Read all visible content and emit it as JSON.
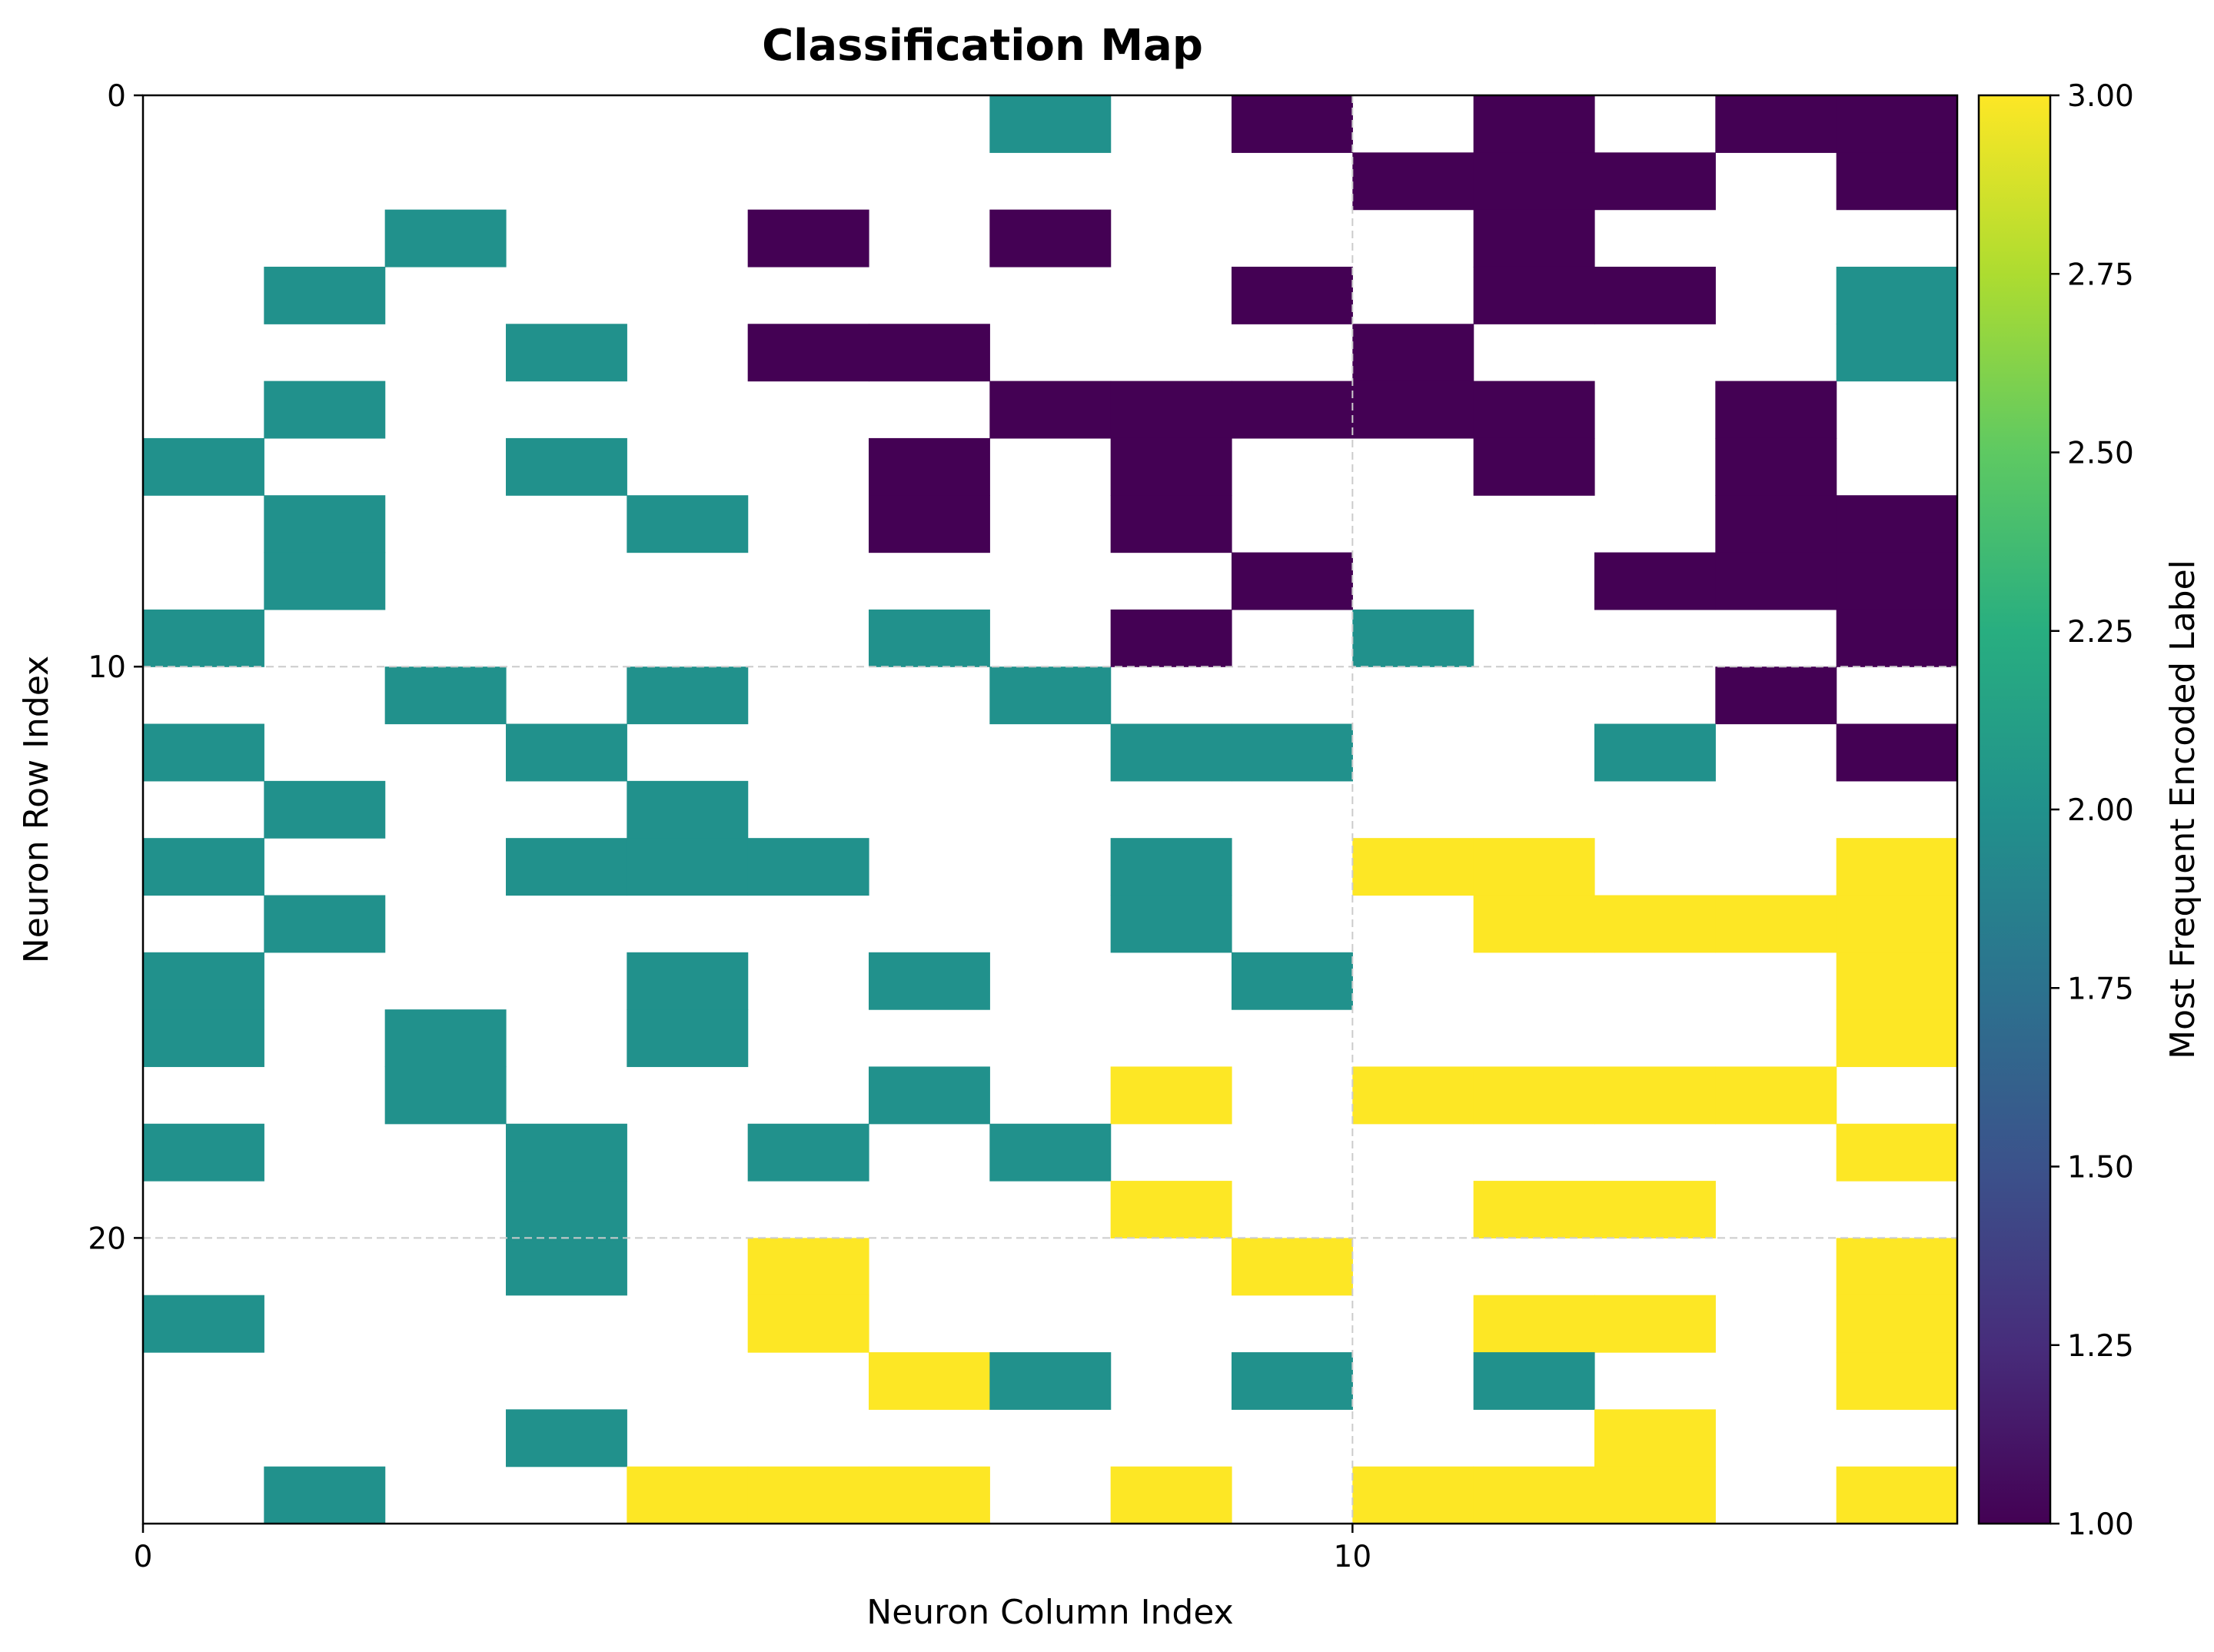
{
  "chart_data": {
    "type": "heatmap",
    "title": "Classification Map",
    "xlabel": "Neuron Column Index",
    "ylabel": "Neuron Row Index",
    "xlim": [
      0,
      15
    ],
    "ylim": [
      25,
      0
    ],
    "x_ticks": [
      0,
      10
    ],
    "y_ticks": [
      0,
      10,
      20
    ],
    "grid": true,
    "colormap": "viridis",
    "colorbar": {
      "label": "Most Frequent Encoded Label",
      "range": [
        1.0,
        3.0
      ],
      "ticks": [
        "1.00",
        "1.25",
        "1.50",
        "1.75",
        "2.00",
        "2.25",
        "2.50",
        "2.75",
        "3.00"
      ]
    },
    "colors": {
      "1": "#440154",
      "2": "#21918c",
      "3": "#fde725"
    },
    "note_empty": "0 = empty cell (no label)",
    "grid_values": [
      [
        0,
        0,
        0,
        0,
        0,
        0,
        0,
        2,
        0,
        1,
        0,
        1,
        0,
        1,
        1
      ],
      [
        0,
        0,
        0,
        0,
        0,
        0,
        0,
        0,
        0,
        0,
        1,
        1,
        1,
        0,
        1
      ],
      [
        0,
        0,
        2,
        0,
        0,
        1,
        0,
        1,
        0,
        0,
        0,
        1,
        0,
        0,
        0
      ],
      [
        0,
        2,
        0,
        0,
        0,
        0,
        0,
        0,
        0,
        1,
        0,
        1,
        1,
        0,
        2
      ],
      [
        0,
        0,
        0,
        2,
        0,
        1,
        1,
        0,
        0,
        0,
        1,
        0,
        0,
        0,
        2
      ],
      [
        0,
        2,
        0,
        0,
        0,
        0,
        0,
        1,
        1,
        1,
        1,
        1,
        0,
        1,
        0
      ],
      [
        2,
        0,
        0,
        2,
        0,
        0,
        1,
        0,
        1,
        0,
        0,
        1,
        0,
        1,
        0
      ],
      [
        0,
        2,
        0,
        0,
        2,
        0,
        1,
        0,
        1,
        0,
        0,
        0,
        0,
        1,
        1
      ],
      [
        0,
        2,
        0,
        0,
        0,
        0,
        0,
        0,
        0,
        1,
        0,
        0,
        1,
        1,
        1
      ],
      [
        2,
        0,
        0,
        0,
        0,
        0,
        2,
        0,
        1,
        0,
        2,
        0,
        0,
        0,
        1
      ],
      [
        0,
        0,
        2,
        0,
        2,
        0,
        0,
        2,
        0,
        0,
        0,
        0,
        0,
        1,
        0
      ],
      [
        2,
        0,
        0,
        2,
        0,
        0,
        0,
        0,
        2,
        2,
        0,
        0,
        2,
        0,
        1
      ],
      [
        0,
        2,
        0,
        0,
        2,
        0,
        0,
        0,
        0,
        0,
        0,
        0,
        0,
        0,
        0
      ],
      [
        2,
        0,
        0,
        2,
        2,
        2,
        0,
        0,
        2,
        0,
        3,
        3,
        0,
        0,
        3
      ],
      [
        0,
        2,
        0,
        0,
        0,
        0,
        0,
        0,
        2,
        0,
        0,
        3,
        3,
        3,
        3
      ],
      [
        2,
        0,
        0,
        0,
        2,
        0,
        2,
        0,
        0,
        2,
        0,
        0,
        0,
        0,
        3
      ],
      [
        2,
        0,
        2,
        0,
        2,
        0,
        0,
        0,
        0,
        0,
        0,
        0,
        0,
        0,
        3
      ],
      [
        0,
        0,
        2,
        0,
        0,
        0,
        2,
        0,
        3,
        0,
        3,
        3,
        3,
        3,
        0
      ],
      [
        2,
        0,
        0,
        2,
        0,
        2,
        0,
        2,
        0,
        0,
        0,
        0,
        0,
        0,
        3
      ],
      [
        0,
        0,
        0,
        2,
        0,
        0,
        0,
        0,
        3,
        0,
        0,
        3,
        3,
        0,
        0
      ],
      [
        0,
        0,
        0,
        2,
        0,
        3,
        0,
        0,
        0,
        3,
        0,
        0,
        0,
        0,
        3
      ],
      [
        2,
        0,
        0,
        0,
        0,
        3,
        0,
        0,
        0,
        0,
        0,
        3,
        3,
        0,
        3
      ],
      [
        0,
        0,
        0,
        0,
        0,
        0,
        3,
        2,
        0,
        2,
        0,
        2,
        0,
        0,
        3
      ],
      [
        0,
        0,
        0,
        2,
        0,
        0,
        0,
        0,
        0,
        0,
        0,
        0,
        3,
        0,
        0
      ],
      [
        0,
        2,
        0,
        0,
        3,
        3,
        3,
        0,
        3,
        0,
        3,
        3,
        3,
        0,
        3
      ]
    ]
  }
}
